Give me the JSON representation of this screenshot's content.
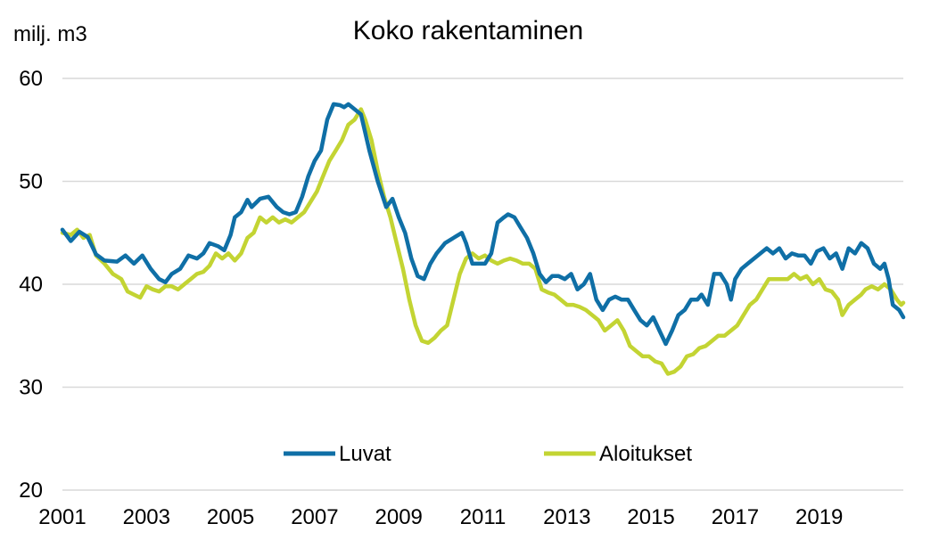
{
  "chart_data": {
    "type": "line",
    "title": "Koko rakentaminen",
    "unit_label": "milj. m3",
    "ylim": [
      20,
      60
    ],
    "yticks": [
      "20",
      "30",
      "40",
      "50",
      "60"
    ],
    "xlim": [
      2001,
      2021
    ],
    "xticks": [
      "2001",
      "2003",
      "2005",
      "2007",
      "2009",
      "2011",
      "2013",
      "2015",
      "2017",
      "2019"
    ],
    "grid": true,
    "legend_position": "bottom",
    "series": [
      {
        "name": "Luvat",
        "color": "#0f6fa6",
        "points": [
          [
            2001.0,
            45.3
          ],
          [
            2001.2,
            44.2
          ],
          [
            2001.4,
            45.1
          ],
          [
            2001.6,
            44.6
          ],
          [
            2001.8,
            42.9
          ],
          [
            2002.0,
            42.3
          ],
          [
            2002.3,
            42.2
          ],
          [
            2002.5,
            42.8
          ],
          [
            2002.7,
            42.0
          ],
          [
            2002.9,
            42.8
          ],
          [
            2003.1,
            41.5
          ],
          [
            2003.3,
            40.5
          ],
          [
            2003.45,
            40.2
          ],
          [
            2003.6,
            41.0
          ],
          [
            2003.8,
            41.5
          ],
          [
            2004.0,
            42.8
          ],
          [
            2004.2,
            42.5
          ],
          [
            2004.35,
            43.0
          ],
          [
            2004.5,
            44.0
          ],
          [
            2004.7,
            43.7
          ],
          [
            2004.85,
            43.3
          ],
          [
            2005.0,
            44.8
          ],
          [
            2005.1,
            46.5
          ],
          [
            2005.25,
            47.0
          ],
          [
            2005.4,
            48.2
          ],
          [
            2005.5,
            47.5
          ],
          [
            2005.7,
            48.3
          ],
          [
            2005.9,
            48.5
          ],
          [
            2006.1,
            47.5
          ],
          [
            2006.25,
            47.0
          ],
          [
            2006.4,
            46.8
          ],
          [
            2006.55,
            47.0
          ],
          [
            2006.7,
            48.5
          ],
          [
            2006.85,
            50.5
          ],
          [
            2007.0,
            52.0
          ],
          [
            2007.15,
            53.0
          ],
          [
            2007.3,
            56.0
          ],
          [
            2007.45,
            57.5
          ],
          [
            2007.6,
            57.4
          ],
          [
            2007.7,
            57.2
          ],
          [
            2007.8,
            57.5
          ],
          [
            2007.95,
            57.0
          ],
          [
            2008.1,
            56.5
          ],
          [
            2008.3,
            53.0
          ],
          [
            2008.5,
            50.0
          ],
          [
            2008.7,
            47.5
          ],
          [
            2008.85,
            48.3
          ],
          [
            2009.0,
            46.5
          ],
          [
            2009.15,
            45.0
          ],
          [
            2009.3,
            42.5
          ],
          [
            2009.45,
            40.8
          ],
          [
            2009.6,
            40.5
          ],
          [
            2009.75,
            42.0
          ],
          [
            2009.9,
            43.0
          ],
          [
            2010.1,
            44.0
          ],
          [
            2010.3,
            44.5
          ],
          [
            2010.5,
            45.0
          ],
          [
            2010.6,
            44.0
          ],
          [
            2010.75,
            42.0
          ],
          [
            2010.9,
            42.0
          ],
          [
            2011.05,
            42.0
          ],
          [
            2011.2,
            43.0
          ],
          [
            2011.35,
            46.0
          ],
          [
            2011.5,
            46.5
          ],
          [
            2011.6,
            46.8
          ],
          [
            2011.75,
            46.5
          ],
          [
            2011.9,
            45.5
          ],
          [
            2012.05,
            44.5
          ],
          [
            2012.2,
            43.0
          ],
          [
            2012.35,
            41.0
          ],
          [
            2012.5,
            40.2
          ],
          [
            2012.65,
            40.8
          ],
          [
            2012.8,
            40.8
          ],
          [
            2012.95,
            40.5
          ],
          [
            2013.1,
            41.0
          ],
          [
            2013.25,
            39.5
          ],
          [
            2013.4,
            40.0
          ],
          [
            2013.55,
            41.0
          ],
          [
            2013.7,
            38.5
          ],
          [
            2013.85,
            37.5
          ],
          [
            2014.0,
            38.5
          ],
          [
            2014.15,
            38.8
          ],
          [
            2014.3,
            38.5
          ],
          [
            2014.45,
            38.5
          ],
          [
            2014.6,
            37.5
          ],
          [
            2014.75,
            36.5
          ],
          [
            2014.9,
            36.0
          ],
          [
            2015.05,
            36.8
          ],
          [
            2015.2,
            35.5
          ],
          [
            2015.35,
            34.2
          ],
          [
            2015.5,
            35.5
          ],
          [
            2015.65,
            37.0
          ],
          [
            2015.8,
            37.5
          ],
          [
            2015.95,
            38.5
          ],
          [
            2016.1,
            38.5
          ],
          [
            2016.2,
            39.0
          ],
          [
            2016.35,
            38.0
          ],
          [
            2016.5,
            41.0
          ],
          [
            2016.65,
            41.0
          ],
          [
            2016.8,
            40.0
          ],
          [
            2016.9,
            38.5
          ],
          [
            2017.0,
            40.5
          ],
          [
            2017.15,
            41.5
          ],
          [
            2017.3,
            42.0
          ],
          [
            2017.45,
            42.5
          ],
          [
            2017.6,
            43.0
          ],
          [
            2017.75,
            43.5
          ],
          [
            2017.9,
            43.0
          ],
          [
            2018.05,
            43.5
          ],
          [
            2018.2,
            42.5
          ],
          [
            2018.35,
            43.0
          ],
          [
            2018.5,
            42.8
          ],
          [
            2018.65,
            42.8
          ],
          [
            2018.8,
            42.0
          ],
          [
            2018.95,
            43.2
          ],
          [
            2019.1,
            43.5
          ],
          [
            2019.25,
            42.5
          ],
          [
            2019.4,
            43.0
          ],
          [
            2019.55,
            41.5
          ],
          [
            2019.7,
            43.5
          ],
          [
            2019.85,
            43.0
          ],
          [
            2020.0,
            44.0
          ],
          [
            2020.15,
            43.5
          ],
          [
            2020.3,
            42.0
          ],
          [
            2020.45,
            41.5
          ],
          [
            2020.55,
            42.0
          ],
          [
            2020.65,
            40.5
          ],
          [
            2020.75,
            38.0
          ],
          [
            2020.9,
            37.5
          ],
          [
            2021.0,
            36.8
          ]
        ]
      },
      {
        "name": "Aloitukset",
        "color": "#c3d433",
        "points": [
          [
            2001.0,
            45.0
          ],
          [
            2001.2,
            44.8
          ],
          [
            2001.35,
            45.3
          ],
          [
            2001.5,
            44.5
          ],
          [
            2001.65,
            44.8
          ],
          [
            2001.8,
            42.8
          ],
          [
            2002.0,
            42.0
          ],
          [
            2002.2,
            41.0
          ],
          [
            2002.4,
            40.5
          ],
          [
            2002.55,
            39.3
          ],
          [
            2002.7,
            39.0
          ],
          [
            2002.85,
            38.7
          ],
          [
            2003.0,
            39.8
          ],
          [
            2003.15,
            39.5
          ],
          [
            2003.3,
            39.3
          ],
          [
            2003.45,
            39.8
          ],
          [
            2003.6,
            39.8
          ],
          [
            2003.75,
            39.5
          ],
          [
            2003.9,
            40.0
          ],
          [
            2004.05,
            40.5
          ],
          [
            2004.2,
            41.0
          ],
          [
            2004.35,
            41.2
          ],
          [
            2004.5,
            41.8
          ],
          [
            2004.65,
            43.0
          ],
          [
            2004.8,
            42.5
          ],
          [
            2004.95,
            43.0
          ],
          [
            2005.1,
            42.3
          ],
          [
            2005.25,
            43.0
          ],
          [
            2005.4,
            44.5
          ],
          [
            2005.55,
            45.0
          ],
          [
            2005.7,
            46.5
          ],
          [
            2005.85,
            46.0
          ],
          [
            2006.0,
            46.5
          ],
          [
            2006.15,
            46.0
          ],
          [
            2006.3,
            46.3
          ],
          [
            2006.45,
            46.0
          ],
          [
            2006.6,
            46.5
          ],
          [
            2006.75,
            47.0
          ],
          [
            2006.9,
            48.0
          ],
          [
            2007.05,
            49.0
          ],
          [
            2007.2,
            50.5
          ],
          [
            2007.35,
            52.0
          ],
          [
            2007.5,
            53.0
          ],
          [
            2007.65,
            54.0
          ],
          [
            2007.8,
            55.5
          ],
          [
            2007.95,
            56.0
          ],
          [
            2008.1,
            57.0
          ],
          [
            2008.2,
            56.0
          ],
          [
            2008.35,
            54.0
          ],
          [
            2008.5,
            51.0
          ],
          [
            2008.65,
            48.5
          ],
          [
            2008.8,
            46.5
          ],
          [
            2008.95,
            44.0
          ],
          [
            2009.1,
            41.5
          ],
          [
            2009.25,
            38.5
          ],
          [
            2009.4,
            36.0
          ],
          [
            2009.55,
            34.5
          ],
          [
            2009.7,
            34.3
          ],
          [
            2009.85,
            34.8
          ],
          [
            2010.0,
            35.5
          ],
          [
            2010.15,
            36.0
          ],
          [
            2010.3,
            38.5
          ],
          [
            2010.45,
            41.0
          ],
          [
            2010.6,
            42.5
          ],
          [
            2010.75,
            43.0
          ],
          [
            2010.9,
            42.5
          ],
          [
            2011.05,
            42.8
          ],
          [
            2011.2,
            42.3
          ],
          [
            2011.35,
            42.0
          ],
          [
            2011.5,
            42.3
          ],
          [
            2011.65,
            42.5
          ],
          [
            2011.8,
            42.3
          ],
          [
            2011.95,
            42.0
          ],
          [
            2012.1,
            42.0
          ],
          [
            2012.25,
            41.5
          ],
          [
            2012.4,
            39.5
          ],
          [
            2012.55,
            39.2
          ],
          [
            2012.7,
            39.0
          ],
          [
            2012.85,
            38.5
          ],
          [
            2013.0,
            38.0
          ],
          [
            2013.15,
            38.0
          ],
          [
            2013.3,
            37.8
          ],
          [
            2013.45,
            37.5
          ],
          [
            2013.6,
            37.0
          ],
          [
            2013.75,
            36.5
          ],
          [
            2013.9,
            35.5
          ],
          [
            2014.05,
            36.0
          ],
          [
            2014.2,
            36.5
          ],
          [
            2014.35,
            35.5
          ],
          [
            2014.5,
            34.0
          ],
          [
            2014.65,
            33.5
          ],
          [
            2014.8,
            33.0
          ],
          [
            2014.95,
            33.0
          ],
          [
            2015.1,
            32.5
          ],
          [
            2015.25,
            32.3
          ],
          [
            2015.4,
            31.3
          ],
          [
            2015.55,
            31.5
          ],
          [
            2015.7,
            32.0
          ],
          [
            2015.85,
            33.0
          ],
          [
            2016.0,
            33.2
          ],
          [
            2016.15,
            33.8
          ],
          [
            2016.3,
            34.0
          ],
          [
            2016.45,
            34.5
          ],
          [
            2016.6,
            35.0
          ],
          [
            2016.75,
            35.0
          ],
          [
            2016.9,
            35.5
          ],
          [
            2017.05,
            36.0
          ],
          [
            2017.2,
            37.0
          ],
          [
            2017.35,
            38.0
          ],
          [
            2017.5,
            38.5
          ],
          [
            2017.65,
            39.5
          ],
          [
            2017.8,
            40.5
          ],
          [
            2017.95,
            40.5
          ],
          [
            2018.1,
            40.5
          ],
          [
            2018.25,
            40.5
          ],
          [
            2018.4,
            41.0
          ],
          [
            2018.55,
            40.5
          ],
          [
            2018.7,
            40.8
          ],
          [
            2018.85,
            40.0
          ],
          [
            2019.0,
            40.5
          ],
          [
            2019.15,
            39.5
          ],
          [
            2019.3,
            39.3
          ],
          [
            2019.45,
            38.5
          ],
          [
            2019.55,
            37.0
          ],
          [
            2019.7,
            38.0
          ],
          [
            2019.85,
            38.5
          ],
          [
            2020.0,
            39.0
          ],
          [
            2020.1,
            39.5
          ],
          [
            2020.25,
            39.8
          ],
          [
            2020.4,
            39.5
          ],
          [
            2020.55,
            40.0
          ],
          [
            2020.7,
            39.5
          ],
          [
            2020.85,
            38.5
          ],
          [
            2020.95,
            38.0
          ],
          [
            2021.0,
            38.2
          ]
        ]
      }
    ]
  }
}
